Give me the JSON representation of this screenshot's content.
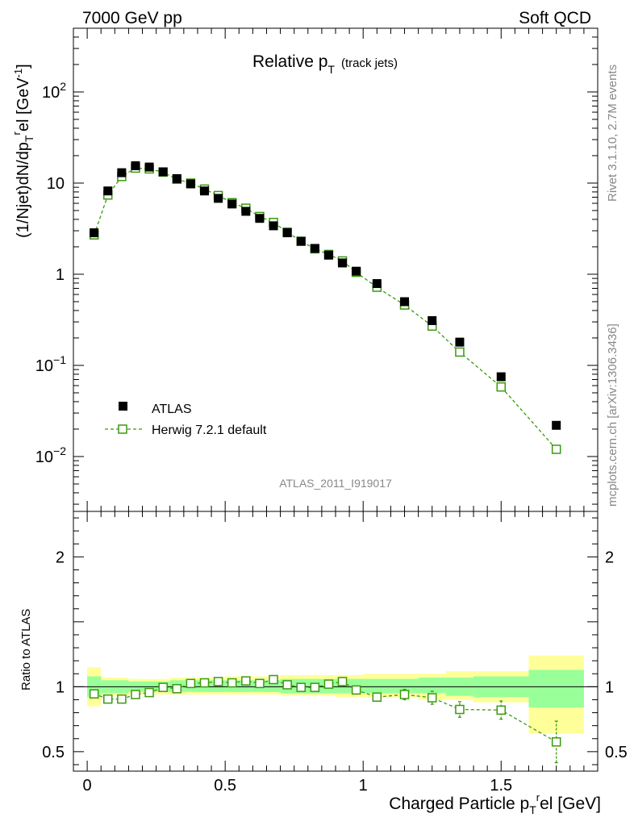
{
  "header": {
    "left": "7000 GeV pp",
    "right": "Soft QCD"
  },
  "plot_title": {
    "main": "Relative p",
    "sub": "T",
    "paren": "(track jets)"
  },
  "analysis_id": "ATLAS_2011_I919017",
  "side_text": {
    "rivet": "Rivet 3.1.10,  2.7M events",
    "mcplots": "mcplots.cern.ch [arXiv:1306.3436]"
  },
  "y_label_main": {
    "part1": "(1/Njet)dN/dp",
    "sub": "T",
    "sup": "r",
    "part2": "el [GeV",
    "sup2": "-1",
    "part3": "]"
  },
  "y_label_ratio": "Ratio to ATLAS",
  "x_label": {
    "part1": "Charged Particle p",
    "sub": "T",
    "sup": "r",
    "part2": "el [GeV]"
  },
  "legend": {
    "data": "ATLAS",
    "mc": "Herwig 7.2.1 default"
  },
  "colors": {
    "data": "#000000",
    "mc": "#3a9a0f",
    "band_inner": "#99ff99",
    "band_outer": "#ffff99"
  },
  "chart_data": [
    {
      "type": "scatter",
      "panel": "main",
      "ylog": true,
      "xlim": [
        -0.05,
        1.85
      ],
      "ylim": [
        0.0025,
        500
      ],
      "y_ticks": [
        {
          "v": 0.01,
          "base": "10",
          "exp": "−2"
        },
        {
          "v": 0.1,
          "base": "10",
          "exp": "−1"
        },
        {
          "v": 1,
          "base": "1",
          "exp": ""
        },
        {
          "v": 10,
          "base": "10",
          "exp": ""
        },
        {
          "v": 100,
          "base": "10",
          "exp": "2"
        }
      ],
      "x_ticks": [
        {
          "v": 0,
          "label": "0"
        },
        {
          "v": 0.5,
          "label": "0.5"
        },
        {
          "v": 1,
          "label": "1"
        },
        {
          "v": 1.5,
          "label": "1.5"
        }
      ],
      "series": [
        {
          "name": "ATLAS",
          "style": "filled-square",
          "x": [
            0.025,
            0.075,
            0.125,
            0.175,
            0.225,
            0.275,
            0.325,
            0.375,
            0.425,
            0.475,
            0.525,
            0.575,
            0.625,
            0.675,
            0.725,
            0.775,
            0.825,
            0.875,
            0.925,
            0.975,
            1.05,
            1.15,
            1.25,
            1.35,
            1.5,
            1.7
          ],
          "y": [
            2.85,
            8.2,
            13.0,
            15.5,
            15.0,
            13.3,
            11.2,
            9.8,
            8.2,
            6.8,
            5.9,
            4.9,
            4.1,
            3.4,
            2.85,
            2.3,
            1.92,
            1.62,
            1.33,
            1.08,
            0.79,
            0.5,
            0.31,
            0.18,
            0.075,
            0.022
          ]
        },
        {
          "name": "Herwig 7.2.1 default",
          "style": "open-square-dashed",
          "x": [
            0.025,
            0.075,
            0.125,
            0.175,
            0.225,
            0.275,
            0.325,
            0.375,
            0.425,
            0.475,
            0.525,
            0.575,
            0.625,
            0.675,
            0.725,
            0.775,
            0.825,
            0.875,
            0.925,
            0.975,
            1.05,
            1.15,
            1.25,
            1.35,
            1.5,
            1.7
          ],
          "y": [
            2.7,
            7.4,
            11.8,
            14.6,
            14.3,
            13.2,
            11.0,
            10.0,
            8.6,
            7.3,
            6.1,
            5.3,
            4.3,
            3.7,
            2.9,
            2.3,
            1.9,
            1.65,
            1.4,
            1.05,
            0.72,
            0.46,
            0.27,
            0.14,
            0.058,
            0.012
          ]
        }
      ]
    },
    {
      "type": "scatter",
      "panel": "ratio",
      "xlim": [
        -0.05,
        1.85
      ],
      "ylim": [
        0.35,
        2.35
      ],
      "y_ticks": [
        {
          "v": 0.5,
          "label": "0.5"
        },
        {
          "v": 1,
          "label": "1"
        },
        {
          "v": 2,
          "label": "2"
        }
      ],
      "bins": [
        {
          "lo": 0.0,
          "hi": 0.05,
          "inner": [
            0.92,
            1.08
          ],
          "outer": [
            0.85,
            1.15
          ]
        },
        {
          "lo": 0.05,
          "hi": 0.15,
          "inner": [
            0.95,
            1.05
          ],
          "outer": [
            0.93,
            1.07
          ]
        },
        {
          "lo": 0.15,
          "hi": 0.3,
          "inner": [
            0.96,
            1.04
          ],
          "outer": [
            0.94,
            1.06
          ]
        },
        {
          "lo": 0.3,
          "hi": 0.5,
          "inner": [
            0.96,
            1.05
          ],
          "outer": [
            0.94,
            1.07
          ]
        },
        {
          "lo": 0.5,
          "hi": 0.7,
          "inner": [
            0.96,
            1.05
          ],
          "outer": [
            0.94,
            1.08
          ]
        },
        {
          "lo": 0.7,
          "hi": 0.9,
          "inner": [
            0.95,
            1.06
          ],
          "outer": [
            0.93,
            1.09
          ]
        },
        {
          "lo": 0.9,
          "hi": 1.0,
          "inner": [
            0.95,
            1.06
          ],
          "outer": [
            0.92,
            1.09
          ]
        },
        {
          "lo": 1.0,
          "hi": 1.2,
          "inner": [
            0.95,
            1.06
          ],
          "outer": [
            0.92,
            1.1
          ]
        },
        {
          "lo": 1.2,
          "hi": 1.3,
          "inner": [
            0.95,
            1.07
          ],
          "outer": [
            0.9,
            1.1
          ]
        },
        {
          "lo": 1.3,
          "hi": 1.4,
          "inner": [
            0.93,
            1.07
          ],
          "outer": [
            0.9,
            1.12
          ]
        },
        {
          "lo": 1.4,
          "hi": 1.6,
          "inner": [
            0.92,
            1.08
          ],
          "outer": [
            0.88,
            1.12
          ]
        },
        {
          "lo": 1.6,
          "hi": 1.8,
          "inner": [
            0.84,
            1.13
          ],
          "outer": [
            0.64,
            1.24
          ]
        }
      ],
      "series": [
        {
          "name": "Herwig 7.2.1 default",
          "x": [
            0.025,
            0.075,
            0.125,
            0.175,
            0.225,
            0.275,
            0.325,
            0.375,
            0.425,
            0.475,
            0.525,
            0.575,
            0.625,
            0.675,
            0.725,
            0.775,
            0.825,
            0.875,
            0.925,
            0.975,
            1.05,
            1.15,
            1.25,
            1.35,
            1.5,
            1.7
          ],
          "y": [
            0.945,
            0.905,
            0.905,
            0.94,
            0.955,
            0.995,
            0.985,
            1.025,
            1.03,
            1.04,
            1.03,
            1.045,
            1.025,
            1.055,
            1.015,
            0.995,
            0.995,
            1.02,
            1.04,
            0.975,
            0.92,
            0.94,
            0.915,
            0.825,
            0.82,
            0.575
          ],
          "err": [
            0,
            0,
            0,
            0,
            0,
            0,
            0,
            0,
            0,
            0,
            0,
            0,
            0,
            0,
            0,
            0,
            0,
            0.02,
            0.03,
            0.03,
            0.03,
            0.04,
            0.05,
            0.06,
            0.07,
            0.16
          ]
        }
      ]
    }
  ]
}
